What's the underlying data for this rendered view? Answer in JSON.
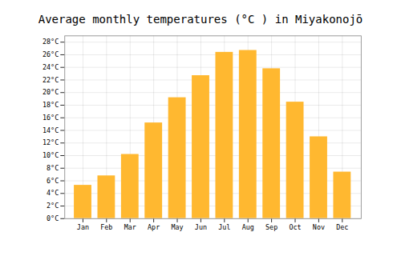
{
  "chart_data": {
    "type": "bar",
    "title": "Average monthly temperatures (°C ) in Miyakonojō",
    "categories": [
      "Jan",
      "Feb",
      "Mar",
      "Apr",
      "May",
      "Jun",
      "Jul",
      "Aug",
      "Sep",
      "Oct",
      "Nov",
      "Dec"
    ],
    "values": [
      5.3,
      6.8,
      10.2,
      15.2,
      19.2,
      22.7,
      26.4,
      26.7,
      23.8,
      18.5,
      13.0,
      7.4
    ],
    "color": "#FFB830",
    "ylim": [
      0,
      29
    ],
    "yticks": [
      {
        "value": 0,
        "label": "0°C"
      },
      {
        "value": 2,
        "label": "2°C"
      },
      {
        "value": 4,
        "label": "4°C"
      },
      {
        "value": 6,
        "label": "6°C"
      },
      {
        "value": 8,
        "label": "8°C"
      },
      {
        "value": 10,
        "label": "10°C"
      },
      {
        "value": 12,
        "label": "12°C"
      },
      {
        "value": 14,
        "label": "14°C"
      },
      {
        "value": 16,
        "label": "16°C"
      },
      {
        "value": 18,
        "label": "18°C"
      },
      {
        "value": 20,
        "label": "20°C"
      },
      {
        "value": 22,
        "label": "22°C"
      },
      {
        "value": 24,
        "label": "24°C"
      },
      {
        "value": 26,
        "label": "26°C"
      },
      {
        "value": 28,
        "label": "28°C"
      }
    ],
    "grid": true
  }
}
